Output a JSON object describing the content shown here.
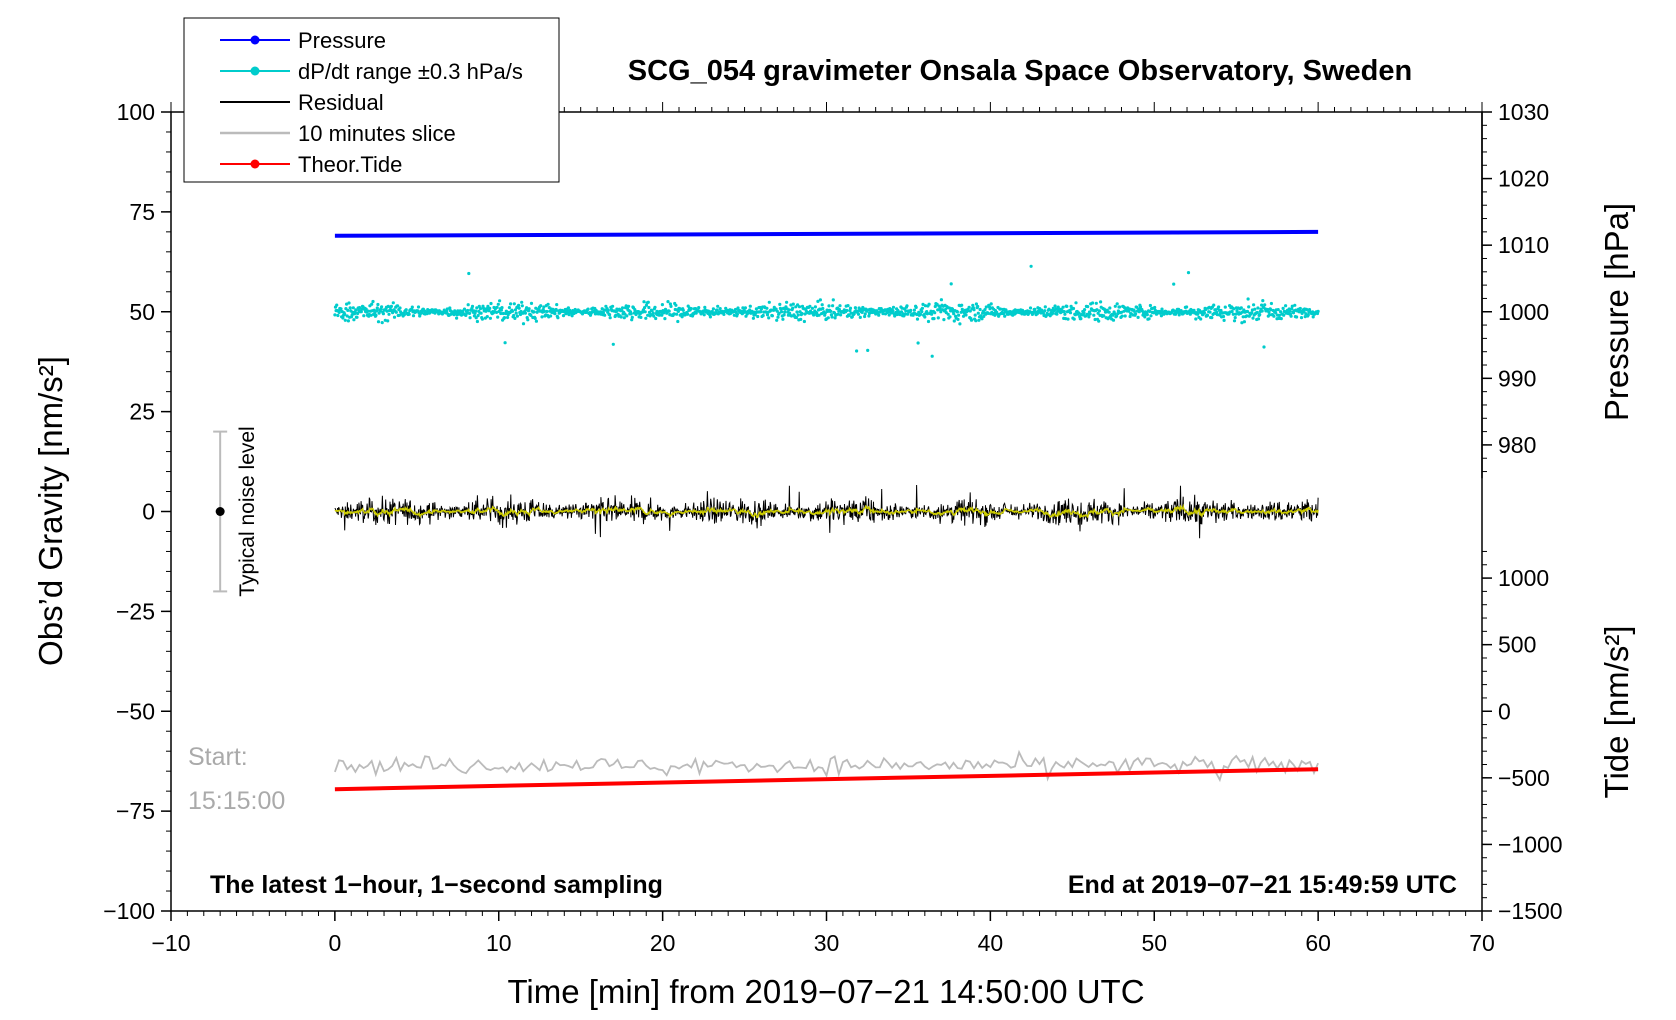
{
  "chart_data": {
    "type": "line",
    "title": "SCG_054 gravimeter Onsala Space Observatory, Sweden",
    "xlabel": "Time [min] from 2019−07−21 14:50:00 UTC",
    "ylabel_left": "Obs’d Gravity [nm/s²]",
    "ylabel_right_top": "Pressure [hPa]",
    "ylabel_right_bottom": "Tide [nm/s²]",
    "xlim": [
      -10,
      70
    ],
    "ylim_left": [
      -100,
      100
    ],
    "x_ticks": [
      -10,
      0,
      10,
      20,
      30,
      40,
      50,
      60,
      70
    ],
    "x_tick_labels": [
      "−10",
      "0",
      "10",
      "20",
      "30",
      "40",
      "50",
      "60",
      "70"
    ],
    "y_left_ticks": [
      -100,
      -75,
      -50,
      -25,
      0,
      25,
      50,
      75,
      100
    ],
    "y_left_tick_labels": [
      "−100",
      "−75",
      "−50",
      "−25",
      "0",
      "25",
      "50",
      "75",
      "100"
    ],
    "pressure_axis": {
      "ticks": [
        980,
        990,
        1000,
        1010,
        1020,
        1030
      ],
      "tick_labels": [
        "980",
        "990",
        "1000",
        "1010",
        "1020",
        "1030"
      ],
      "map": {
        "at_left_value_50": 1000,
        "at_left_value_100": 1030
      }
    },
    "tide_axis": {
      "ticks": [
        -1500,
        -1000,
        -500,
        0,
        500,
        1000
      ],
      "tick_labels": [
        "−1500",
        "−1000",
        "−500",
        "0",
        "500",
        "1000"
      ],
      "map": {
        "at_left_value_minus100": -1500,
        "at_left_value_minus50": 0
      }
    },
    "legend": {
      "placement": "top-left",
      "entries": [
        {
          "label": "Pressure",
          "color": "#0000ff",
          "marker": true
        },
        {
          "label": "dP/dt range ±0.3 hPa/s",
          "color": "#00cccc",
          "marker": true
        },
        {
          "label": "Residual",
          "color": "#000000",
          "marker": false
        },
        {
          "label": "10 minutes slice",
          "color": "#bbbbbb",
          "marker": false
        },
        {
          "label": "Theor.Tide",
          "color": "#ff0000",
          "marker": true
        }
      ]
    },
    "series": [
      {
        "name": "Pressure",
        "color": "#0000ff",
        "x": [
          0,
          60
        ],
        "y": [
          69,
          70
        ]
      },
      {
        "name": "dP/dt range ±0.3 hPa/s",
        "color": "#00cccc",
        "x_range": [
          0,
          60
        ],
        "center": 50,
        "spread_typical": 2,
        "spread_max": 12
      },
      {
        "name": "Residual",
        "color": "#000000",
        "x_range": [
          0,
          60
        ],
        "center": 0,
        "spread_typical": 2.5,
        "spread_max": 7
      },
      {
        "name": "10 minutes slice",
        "color": "#bbbbbb",
        "x_range": [
          0,
          60
        ],
        "center": -63.5,
        "spread_typical": 1.5,
        "spread_max": 4
      },
      {
        "name": "Theor.Tide",
        "color": "#ff0000",
        "x": [
          0,
          60
        ],
        "y": [
          -69.5,
          -64.5
        ]
      }
    ],
    "annotations": {
      "noise_label": "Typical noise level",
      "noise_bar": {
        "x": -7,
        "y_low": -20,
        "y_high": 20,
        "center": 0
      },
      "start_label": "Start:",
      "start_time": "15:15:00",
      "footer_left": "The latest 1−hour, 1−second sampling",
      "footer_right": "End at 2019−07−21 15:49:59 UTC"
    },
    "grid": false
  }
}
